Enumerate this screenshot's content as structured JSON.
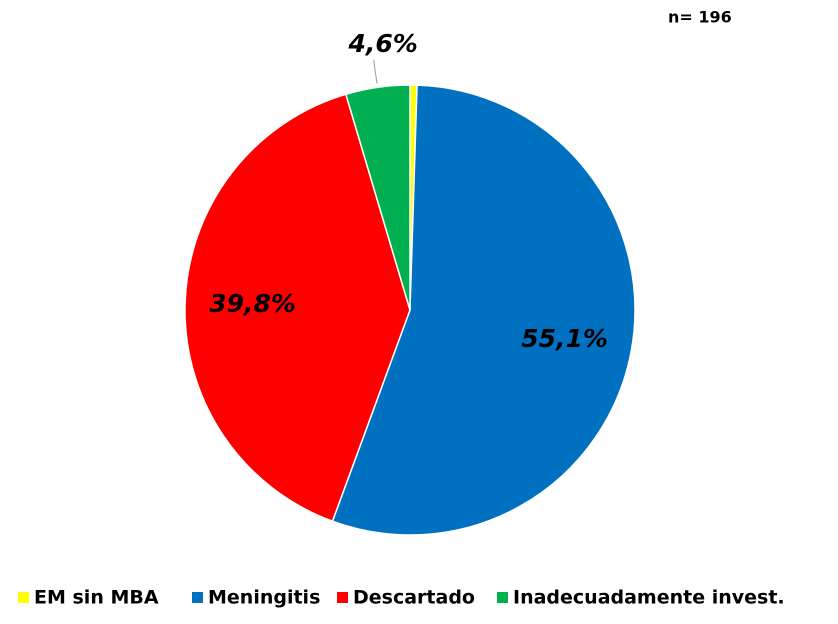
{
  "chart_data": {
    "type": "pie",
    "annotation": "n= 196",
    "categories": [
      "EM sin MBA",
      "Meningitis",
      "Descartado",
      "Inadecuadamente invest."
    ],
    "values": [
      0.5,
      55.1,
      39.8,
      4.6
    ],
    "value_labels": [
      null,
      "55,1%",
      "39,8%",
      "4,6%"
    ],
    "colors": [
      "#ffff00",
      "#0070c0",
      "#ff0000",
      "#00b050"
    ],
    "legend": "bottom"
  }
}
